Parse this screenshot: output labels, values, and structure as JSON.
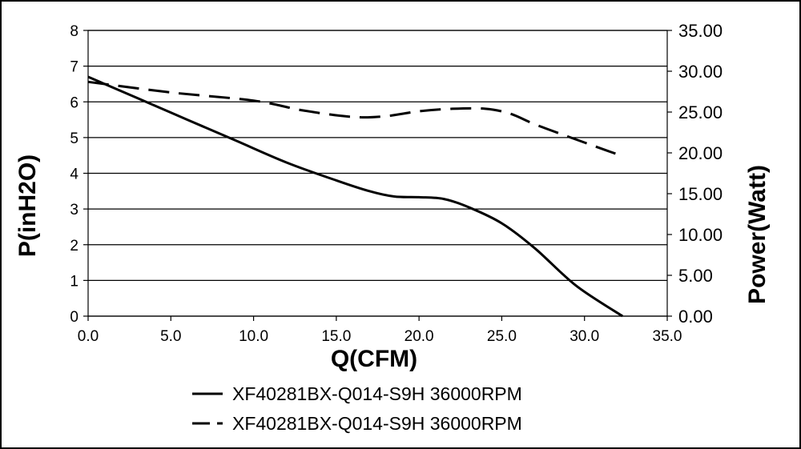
{
  "chart_data": {
    "type": "line",
    "xlabel": "Q(CFM)",
    "ylabel": "P(inH2O)",
    "y2label": "Power(Watt)",
    "xlim": [
      0,
      35
    ],
    "ylim": [
      0,
      8
    ],
    "y2lim": [
      0,
      35
    ],
    "xticks": [
      "0.0",
      "5.0",
      "10.0",
      "15.0",
      "20.0",
      "25.0",
      "30.0",
      "35.0"
    ],
    "yticks": [
      "0",
      "1",
      "2",
      "3",
      "4",
      "5",
      "6",
      "7",
      "8"
    ],
    "y2ticks": [
      "0.00",
      "5.00",
      "10.00",
      "15.00",
      "20.00",
      "25.00",
      "30.00",
      "35.00"
    ],
    "grid": "horizontal",
    "legend_position": "bottom",
    "series": [
      {
        "name": "XF40281BX-Q014-S9H 36000RPM",
        "axis": "left",
        "style": "solid",
        "color": "#000000",
        "x": [
          0,
          3,
          6,
          9,
          12,
          15,
          17,
          18.5,
          20,
          21.5,
          23,
          25,
          27,
          29.5,
          32.3
        ],
        "y": [
          6.7,
          6.1,
          5.5,
          4.9,
          4.3,
          3.8,
          3.5,
          3.35,
          3.33,
          3.28,
          3.05,
          2.6,
          1.9,
          0.85,
          0.0
        ]
      },
      {
        "name": "XF40281BX-Q014-S9H 36000RPM",
        "axis": "right",
        "style": "dashed",
        "color": "#000000",
        "x": [
          0,
          5,
          10,
          13,
          16,
          18,
          20,
          22,
          24,
          25.5,
          27,
          29,
          30.5,
          32.3
        ],
        "y": [
          28.7,
          27.4,
          26.4,
          25.2,
          24.4,
          24.5,
          25.1,
          25.4,
          25.4,
          24.8,
          23.5,
          22.0,
          20.9,
          19.6
        ]
      }
    ]
  }
}
